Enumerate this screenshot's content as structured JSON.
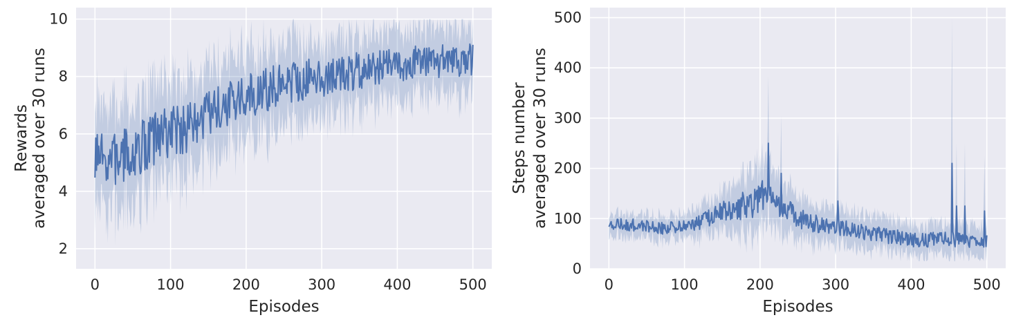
{
  "chart_data": [
    {
      "type": "line",
      "xlabel": "Episodes",
      "ylabel": [
        "Rewards",
        "averaged over 30 runs"
      ],
      "xlim": [
        -25,
        525
      ],
      "ylim": [
        1.3,
        10.4
      ],
      "xticks": [
        0,
        100,
        200,
        300,
        400,
        500
      ],
      "yticks": [
        2,
        4,
        6,
        8,
        10
      ],
      "grid": true,
      "legend": "none",
      "line_color": "#4c72b0",
      "band_color": "#4c72b0",
      "background": "#eaeaf2",
      "mean_profile": {
        "x": [
          0,
          25,
          50,
          75,
          100,
          125,
          150,
          175,
          200,
          225,
          250,
          275,
          300,
          325,
          350,
          375,
          400,
          425,
          450,
          475,
          500
        ],
        "y": [
          5.0,
          5.1,
          5.3,
          5.8,
          6.1,
          6.2,
          6.6,
          7.0,
          7.3,
          7.5,
          7.8,
          7.9,
          8.0,
          8.1,
          8.2,
          8.3,
          8.4,
          8.5,
          8.5,
          8.6,
          8.6
        ]
      },
      "noise_amplitude": {
        "x": [
          0,
          100,
          200,
          300,
          400,
          500
        ],
        "y": [
          1.0,
          0.9,
          0.8,
          0.7,
          0.6,
          0.6
        ]
      },
      "band_halfwidth": {
        "x": [
          0,
          100,
          200,
          300,
          400,
          500
        ],
        "y": [
          1.8,
          1.7,
          1.5,
          1.3,
          1.2,
          1.2
        ]
      },
      "y_clip": [
        1.7,
        10.0
      ]
    },
    {
      "type": "line",
      "xlabel": "Episodes",
      "ylabel": [
        "Steps number",
        "averaged over 30 runs"
      ],
      "xlim": [
        -25,
        525
      ],
      "ylim": [
        0,
        520
      ],
      "xticks": [
        0,
        100,
        200,
        300,
        400,
        500
      ],
      "yticks": [
        0,
        100,
        200,
        300,
        400,
        500
      ],
      "grid": true,
      "legend": "none",
      "line_color": "#4c72b0",
      "band_color": "#4c72b0",
      "background": "#eaeaf2",
      "mean_profile": {
        "x": [
          0,
          25,
          50,
          75,
          100,
          125,
          150,
          175,
          200,
          210,
          225,
          250,
          275,
          300,
          325,
          350,
          375,
          400,
          425,
          450,
          475,
          500
        ],
        "y": [
          90,
          88,
          85,
          80,
          85,
          95,
          115,
          125,
          140,
          150,
          130,
          100,
          90,
          85,
          78,
          70,
          65,
          58,
          58,
          60,
          55,
          55
        ]
      },
      "noise_amplitude": {
        "x": [
          0,
          100,
          150,
          200,
          250,
          300,
          400,
          500
        ],
        "y": [
          12,
          12,
          20,
          35,
          20,
          18,
          15,
          15
        ]
      },
      "band_halfwidth": {
        "x": [
          0,
          100,
          150,
          200,
          250,
          300,
          400,
          500
        ],
        "y": [
          22,
          24,
          40,
          70,
          40,
          35,
          30,
          30
        ]
      },
      "spikes": [
        {
          "x": 211,
          "mean": 250,
          "upper": 385
        },
        {
          "x": 228,
          "mean": 190,
          "upper": 305
        },
        {
          "x": 303,
          "mean": 135,
          "upper": 275
        },
        {
          "x": 454,
          "mean": 210,
          "upper": 500
        },
        {
          "x": 460,
          "mean": 125,
          "upper": 250
        },
        {
          "x": 471,
          "mean": 125,
          "upper": 250
        },
        {
          "x": 497,
          "mean": 115,
          "upper": 225
        }
      ],
      "y_clip": [
        15,
        510
      ]
    }
  ]
}
